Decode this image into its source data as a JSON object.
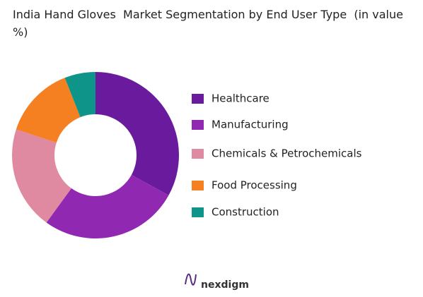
{
  "chart_data": {
    "type": "donut",
    "title": "India Hand Gloves  Market Segmentation by End User Type  (in value %)",
    "categories": [
      "Healthcare",
      "Manufacturing",
      "Chemicals & Petrochemicals",
      "Food Processing",
      "Construction"
    ],
    "values": [
      33,
      27,
      20,
      14,
      6
    ],
    "colors": [
      "#6a1b9d",
      "#9128b2",
      "#e08aa2",
      "#f58021",
      "#0e9488"
    ],
    "legend": "right"
  },
  "footer": {
    "brand": "nexdigm"
  }
}
